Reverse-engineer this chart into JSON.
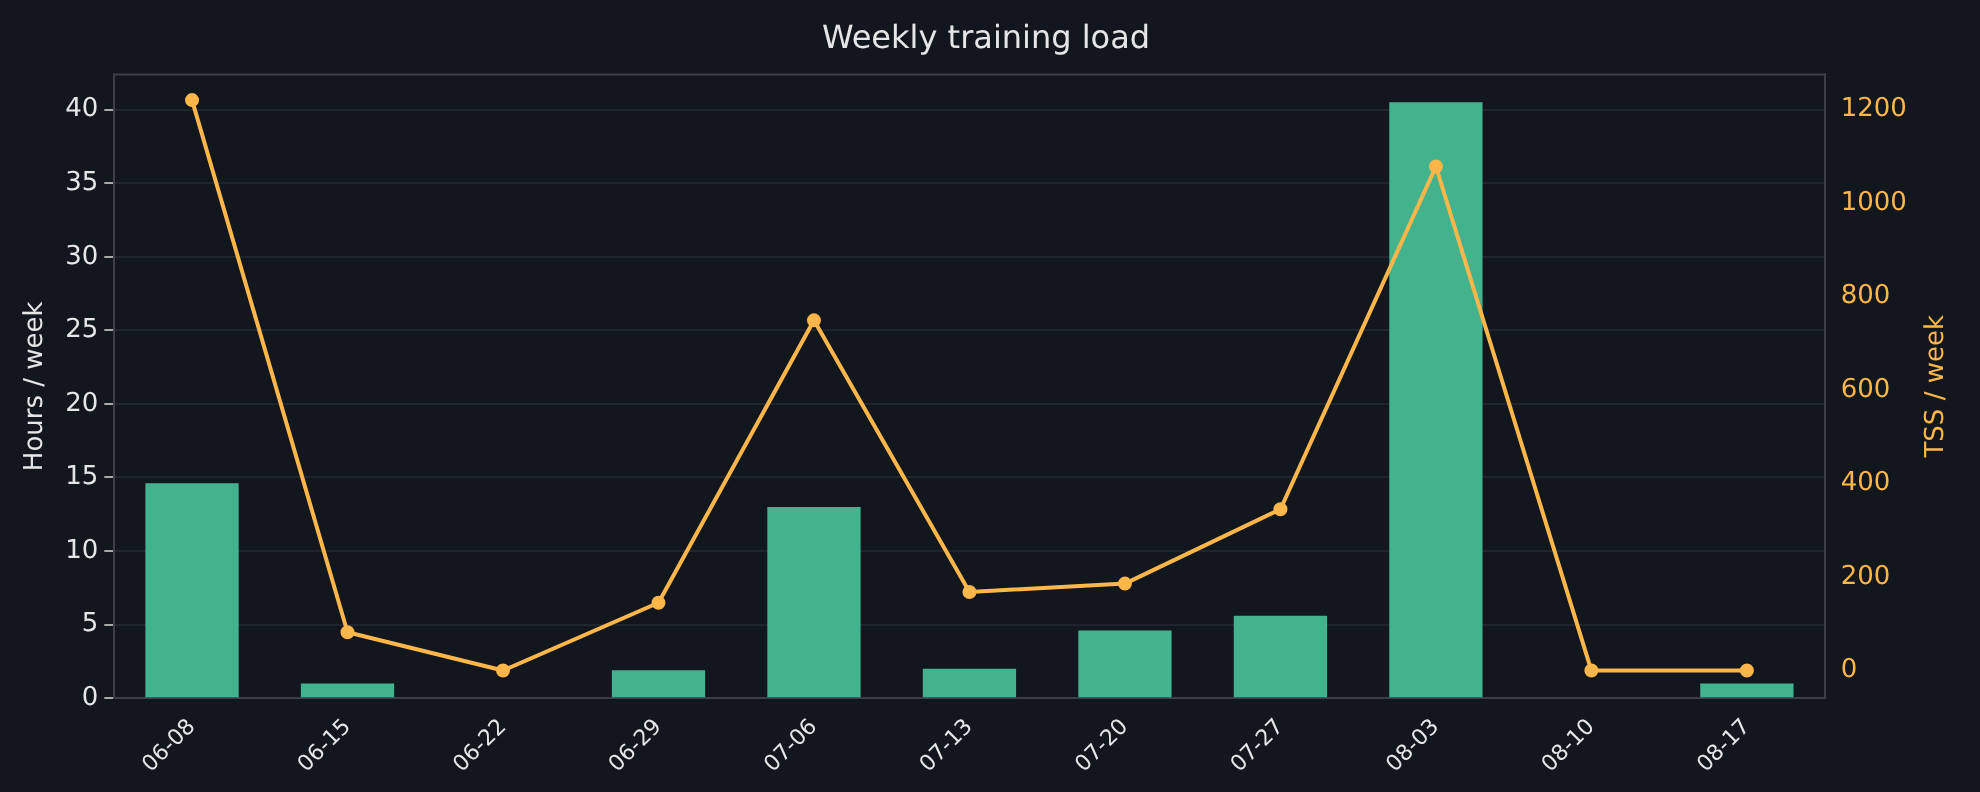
{
  "chart_data": {
    "type": "bar",
    "title": "Weekly training load",
    "ylabel": "Hours / week",
    "y2label": "TSS / week",
    "categories": [
      "06-08",
      "06-15",
      "06-22",
      "06-29",
      "07-06",
      "07-13",
      "07-20",
      "07-27",
      "08-03",
      "08-10",
      "08-17"
    ],
    "series": [
      {
        "color": "#43b38e",
        "values": [
          14.6,
          1.0,
          0,
          1.9,
          13.0,
          2.0,
          4.6,
          5.6,
          40.5,
          0,
          1.0
        ]
      },
      {
        "type": "line",
        "axis": "y2",
        "color": "#fdb64a",
        "values": [
          1220,
          82,
          0,
          145,
          749,
          168,
          186,
          345,
          1078,
          0,
          0
        ]
      }
    ],
    "ylim": [
      0,
      42.4
    ],
    "yticks": [
      0,
      5,
      10,
      15,
      20,
      25,
      30,
      35,
      40
    ],
    "y2lim": [
      -59,
      1275
    ],
    "y2ticks": [
      0,
      200,
      400,
      600,
      800,
      1000,
      1200
    ],
    "grid": "y",
    "marker": "circle",
    "line_style": "solid",
    "legend": false
  }
}
